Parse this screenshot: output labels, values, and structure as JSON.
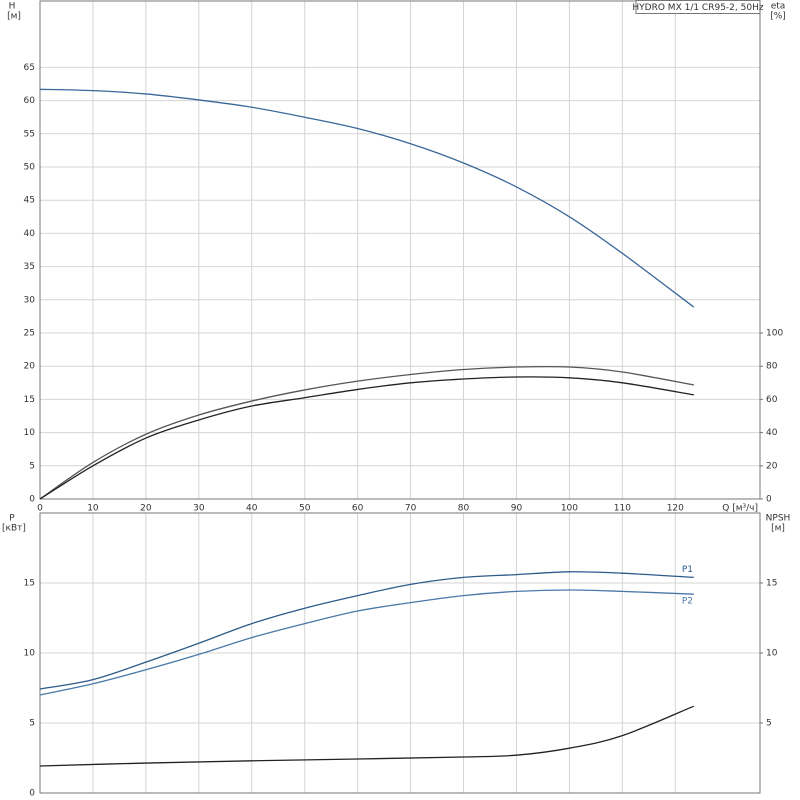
{
  "chart_data": [
    {
      "type": "line",
      "title": "HYDRO MX 1/1 CR95-2, 50Hz",
      "ylabel": "H",
      "yunit": "[м]",
      "y2label": "eta",
      "y2unit": "[%]",
      "xlabel": "Q [м³/ч]",
      "xlim": [
        0,
        136
      ],
      "xticks": [
        0,
        10,
        20,
        30,
        40,
        50,
        60,
        70,
        80,
        90,
        100,
        110,
        120
      ],
      "ylim": [
        0,
        75
      ],
      "yticks": [
        0,
        5,
        10,
        15,
        20,
        25,
        30,
        35,
        40,
        45,
        50,
        55,
        60,
        65
      ],
      "y2lim": [
        0,
        300
      ],
      "y2ticks": [
        0,
        20,
        40,
        60,
        80,
        100
      ],
      "grid": true,
      "series": [
        {
          "color": "#3a679a",
          "x": [
            0,
            10,
            20,
            30,
            40,
            50,
            60,
            70,
            80,
            90,
            100,
            110,
            123.5
          ],
          "values": [
            61.7,
            61.5,
            61,
            60.1,
            59,
            57.5,
            55.8,
            53.5,
            50.6,
            47,
            42.5,
            37,
            28.9
          ]
        },
        {
          "color": "#555555",
          "axis": "y2",
          "x": [
            0,
            10,
            20,
            30,
            40,
            50,
            60,
            70,
            80,
            90,
            100,
            110,
            123.5
          ],
          "values": [
            0,
            22,
            39,
            50.6,
            59,
            65.7,
            71,
            75,
            78,
            79.5,
            79.5,
            76.5,
            68.7
          ]
        },
        {
          "color": "#222222",
          "axis": "y2",
          "x": [
            0,
            10,
            20,
            30,
            40,
            50,
            60,
            70,
            80,
            90,
            100,
            110,
            123.5
          ],
          "values": [
            0,
            20,
            36.7,
            47.6,
            56,
            61,
            66,
            70,
            72.3,
            73.5,
            73,
            70,
            62.7
          ]
        }
      ]
    },
    {
      "type": "line",
      "ylabel": "P",
      "yunit": "[кВт]",
      "y2label": "NPSH",
      "y2unit": "[м]",
      "xlim": [
        0,
        136
      ],
      "xticks": [
        0,
        10,
        20,
        30,
        40,
        50,
        60,
        70,
        80,
        90,
        100,
        110,
        120
      ],
      "ylim": [
        0,
        20
      ],
      "yticks": [
        0,
        5,
        10,
        15
      ],
      "y2lim": [
        0,
        20
      ],
      "y2ticks": [
        5,
        10,
        15
      ],
      "grid": true,
      "series": [
        {
          "name": "P1",
          "color": "#2d5a8a",
          "x": [
            0,
            10,
            20,
            30,
            40,
            50,
            60,
            70,
            80,
            90,
            100,
            110,
            123.5
          ],
          "values": [
            7.43,
            8.1,
            9.35,
            10.7,
            12.1,
            13.2,
            14.1,
            14.9,
            15.4,
            15.6,
            15.8,
            15.7,
            15.4
          ]
        },
        {
          "name": "P2",
          "color": "#4a78a8",
          "x": [
            0,
            10,
            20,
            30,
            40,
            50,
            60,
            70,
            80,
            90,
            100,
            110,
            123.5
          ],
          "values": [
            7.0,
            7.8,
            8.8,
            9.9,
            11.1,
            12.1,
            13.0,
            13.6,
            14.1,
            14.4,
            14.5,
            14.4,
            14.2
          ]
        },
        {
          "color": "#222222",
          "axis": "y2",
          "x": [
            0,
            20,
            40,
            60,
            80,
            90,
            100,
            110,
            123.5
          ],
          "values": [
            1.93,
            2.14,
            2.3,
            2.43,
            2.57,
            2.7,
            3.2,
            4.1,
            6.2
          ]
        }
      ]
    }
  ]
}
